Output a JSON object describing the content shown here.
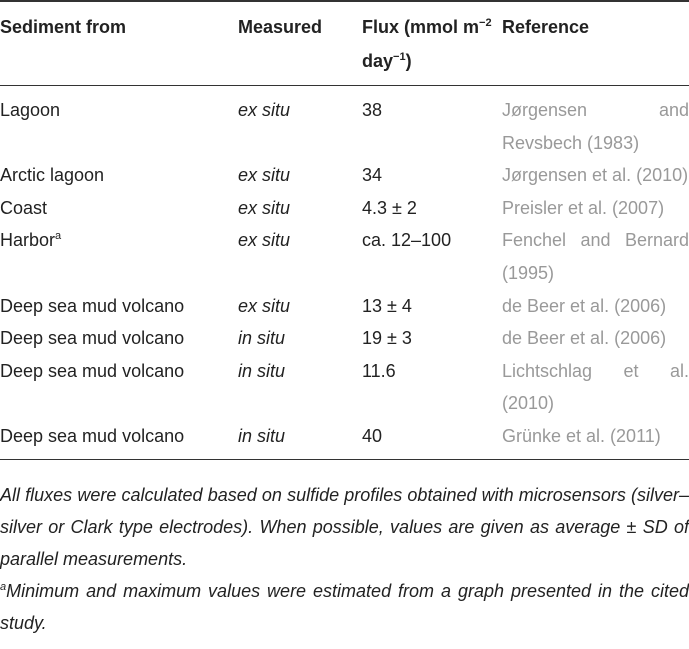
{
  "table": {
    "header": [
      [
        "Sediment from"
      ],
      [
        "Measured"
      ],
      [
        "Flux (mmol m",
        {
          "sup": "−2"
        },
        " day",
        {
          "sup": "−1"
        },
        ")"
      ],
      [
        "Reference"
      ]
    ],
    "rows": [
      [
        "Lagoon",
        "ex situ",
        "38",
        "Jørgensen and Revsbech (1983)"
      ],
      [
        "Arctic lagoon",
        "ex situ",
        "34",
        "Jørgensen et al. (2010)"
      ],
      [
        "Coast",
        "ex situ",
        "4.3 ± 2",
        "Preisler et al. (2007)"
      ],
      [
        {
          "text": "Harbor",
          "note": "a"
        },
        "ex situ",
        "ca. 12–100",
        "Fenchel and Bernard (1995)"
      ],
      [
        "Deep sea mud volcano",
        "ex situ",
        "13 ± 4",
        "de Beer et al. (2006)"
      ],
      [
        "Deep sea mud volcano",
        "in situ",
        "19 ± 3",
        "de Beer et al. (2006)"
      ],
      [
        "Deep sea mud volcano",
        "in situ",
        "11.6",
        "Lichtschlag et al. (2010)"
      ],
      [
        "Deep sea mud volcano",
        "in situ",
        "40",
        "Grünke et al. (2011)"
      ]
    ]
  },
  "notes": {
    "general": "All fluxes were calculated based on sulfide profiles obtained with microsensors (silver–silver or Clark type electrodes). When possible, values are given as average ± SD of parallel measurements.",
    "footnote": {
      "mark": "a",
      "text": "Minimum and maximum values were estimated from a graph presented in the cited study."
    }
  }
}
